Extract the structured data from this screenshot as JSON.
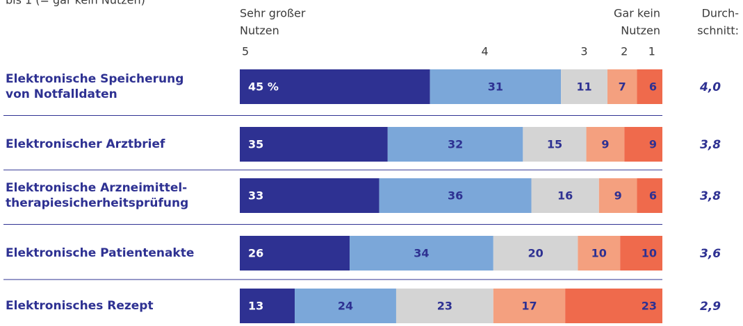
{
  "chart_data": {
    "type": "stacked_bar_horizontal",
    "subtitle": "bis 1 (= gar kein Nutzen)",
    "left_header": [
      "Sehr großer",
      "Nutzen"
    ],
    "right_header": [
      "Gar kein",
      "Nutzen"
    ],
    "categories": [
      [
        "Elektronische Speicherung",
        "von Notfalldaten"
      ],
      [
        "Elektronischer Arztbrief"
      ],
      [
        "Elektronische Arzneimittel-",
        "therapiesicherheitsprüfung"
      ],
      [
        "Elektronische Patientenakte"
      ],
      [
        "Elektronisches Rezept"
      ]
    ],
    "series": [
      {
        "name": "5",
        "color": "#2e3192",
        "values": [
          45,
          35,
          33,
          26,
          13
        ],
        "value_labels": [
          "45 %",
          "35",
          "33",
          "26",
          "13"
        ]
      },
      {
        "name": "4",
        "color": "#7ba7d9",
        "values": [
          31,
          32,
          36,
          34,
          24
        ]
      },
      {
        "name": "3",
        "color": "#d4d4d4",
        "values": [
          11,
          15,
          16,
          20,
          23
        ]
      },
      {
        "name": "2",
        "color": "#f4a07f",
        "values": [
          7,
          9,
          9,
          10,
          17
        ]
      },
      {
        "name": "1",
        "color": "#ef6a4c",
        "values": [
          6,
          9,
          6,
          10,
          23
        ]
      }
    ],
    "xlim": [
      0,
      100
    ],
    "average": {
      "name": [
        "Durch-",
        "schnitt:"
      ],
      "values": [
        4.0,
        3.8,
        3.8,
        3.6,
        2.9
      ],
      "value_labels": [
        "4,0",
        "3,8",
        "3,8",
        "3,6",
        "2,9"
      ]
    }
  }
}
